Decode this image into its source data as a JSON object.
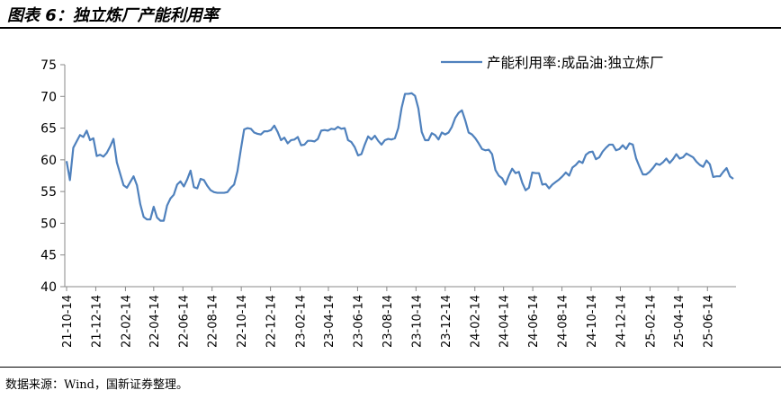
{
  "figure": {
    "title": "图表 6：独立炼厂产能利用率",
    "source": "数据来源：Wind，国新证券整理。"
  },
  "colors": {
    "line": "#4f81bd",
    "axis": "#888888",
    "text": "#000000"
  },
  "chart_data": {
    "type": "line",
    "title": "",
    "xlabel": "",
    "ylabel": "",
    "ylim": [
      40,
      75
    ],
    "yticks": [
      40,
      45,
      50,
      55,
      60,
      65,
      70,
      75
    ],
    "grid": false,
    "legend_position": "top-right",
    "xticks": [
      "21-10-14",
      "21-12-14",
      "22-02-14",
      "22-04-14",
      "22-06-14",
      "22-08-14",
      "22-10-14",
      "22-12-14",
      "23-02-14",
      "23-04-14",
      "23-06-14",
      "23-08-14",
      "23-10-14",
      "23-12-14",
      "24-02-14",
      "24-04-14",
      "24-06-14",
      "24-08-14",
      "24-10-14",
      "24-12-14",
      "25-02-14",
      "25-04-14",
      "25-06-14"
    ],
    "x_start": "2021-10-14",
    "x_interval": "weekly",
    "series": [
      {
        "name": "产能利用率:成品油:独立炼厂",
        "values": [
          59.8,
          56.8,
          61.9,
          62.9,
          63.9,
          63.6,
          64.6,
          63.1,
          63.4,
          60.6,
          60.8,
          60.5,
          61.1,
          62.1,
          63.3,
          59.6,
          57.8,
          56.0,
          55.6,
          56.5,
          57.4,
          56.0,
          53.0,
          51.0,
          50.6,
          50.6,
          52.6,
          50.9,
          50.4,
          50.4,
          52.8,
          53.9,
          54.5,
          56.1,
          56.6,
          55.8,
          56.9,
          58.3,
          55.7,
          55.5,
          57.0,
          56.8,
          55.9,
          55.2,
          54.9,
          54.8,
          54.8,
          54.8,
          54.9,
          55.6,
          56.1,
          58.2,
          61.6,
          64.8,
          65.0,
          64.9,
          64.3,
          64.1,
          64.0,
          64.5,
          64.5,
          64.7,
          65.4,
          64.4,
          63.1,
          63.5,
          62.6,
          63.1,
          63.2,
          63.6,
          62.3,
          62.4,
          63.0,
          63.0,
          62.9,
          63.3,
          64.6,
          64.7,
          64.6,
          64.9,
          64.8,
          65.2,
          64.9,
          65.0,
          63.1,
          62.8,
          62.0,
          60.7,
          60.9,
          62.4,
          63.7,
          63.2,
          63.8,
          63.0,
          62.4,
          63.1,
          63.3,
          63.2,
          63.4,
          65.0,
          68.2,
          70.4,
          70.4,
          70.5,
          70.1,
          68.1,
          64.4,
          63.1,
          63.1,
          64.2,
          63.9,
          63.2,
          64.3,
          64.0,
          64.3,
          65.2,
          66.6,
          67.4,
          67.8,
          66.2,
          64.3,
          64.0,
          63.4,
          62.6,
          61.7,
          61.5,
          61.6,
          60.9,
          58.4,
          57.5,
          57.1,
          56.1,
          57.5,
          58.6,
          57.9,
          58.1,
          56.4,
          55.2,
          55.6,
          58.0,
          57.9,
          57.9,
          56.1,
          56.2,
          55.5,
          56.1,
          56.5,
          56.9,
          57.4,
          58.0,
          57.5,
          58.8,
          59.2,
          59.8,
          59.5,
          60.8,
          61.2,
          61.3,
          60.1,
          60.4,
          61.3,
          61.9,
          62.4,
          62.4,
          61.5,
          61.7,
          62.3,
          61.7,
          62.6,
          62.4,
          60.2,
          58.9,
          57.7,
          57.7,
          58.1,
          58.7,
          59.4,
          59.2,
          59.6,
          60.2,
          59.5,
          60.1,
          60.9,
          60.2,
          60.4,
          61.0,
          60.7,
          60.4,
          59.7,
          59.2,
          58.9,
          59.9,
          59.3,
          57.3,
          57.4,
          57.4,
          58.1,
          58.7,
          57.4,
          57.0
        ]
      }
    ]
  }
}
